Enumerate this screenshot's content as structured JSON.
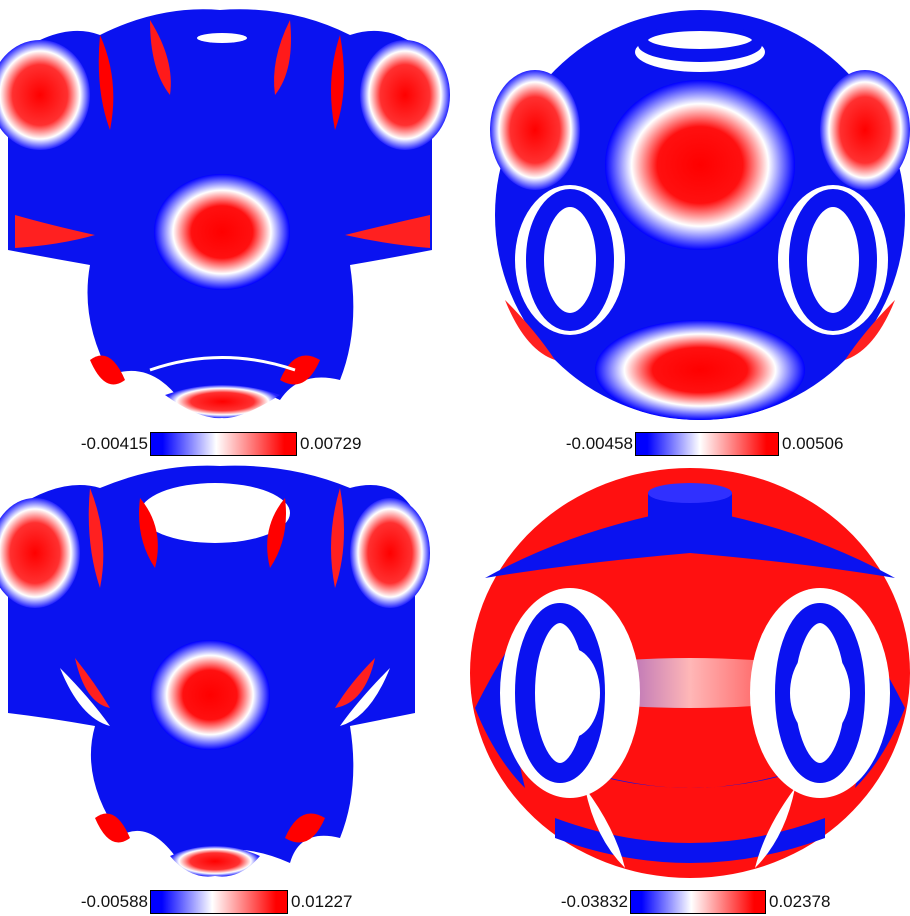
{
  "panels": [
    {
      "id": "top-left",
      "min_label": "-0.00415",
      "max_label": "0.00729"
    },
    {
      "id": "top-right",
      "min_label": "-0.00458",
      "max_label": "0.00506"
    },
    {
      "id": "bottom-left",
      "min_label": "-0.00588",
      "max_label": "0.01227"
    },
    {
      "id": "bottom-right",
      "min_label": "-0.03832",
      "max_label": "0.02378"
    }
  ],
  "colormap": {
    "low": "#0000ff",
    "mid": "#ffffff",
    "high": "#ff0000"
  }
}
